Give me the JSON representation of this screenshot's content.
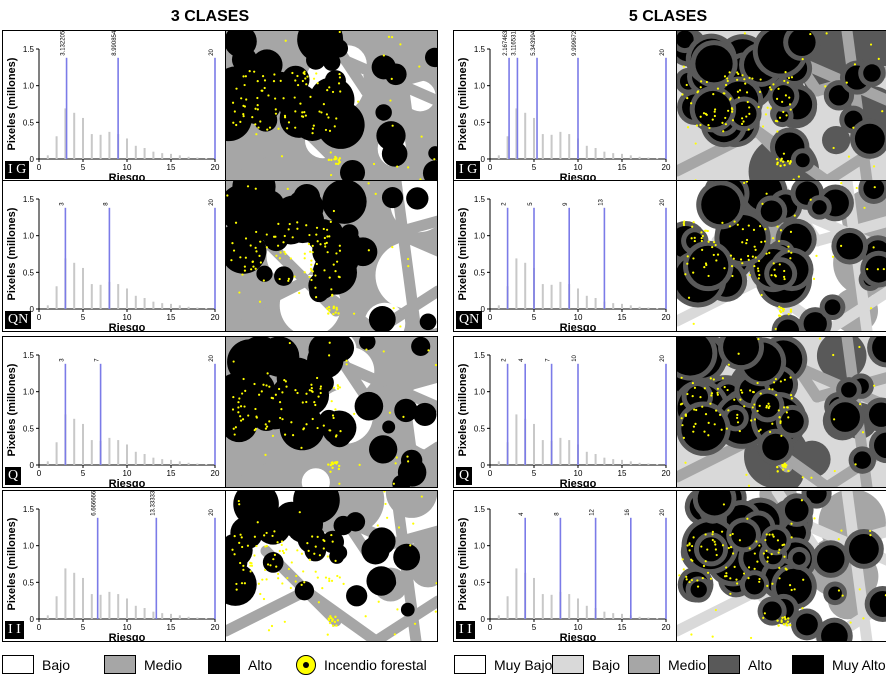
{
  "headers": {
    "left": "3 CLASES",
    "right": "5 CLASES"
  },
  "axis": {
    "ylabel": "Pixeles (millones)",
    "xlabel": "Riesgo"
  },
  "colors": {
    "hist_bar": "#c8c8c8",
    "threshold": "#7b7be8",
    "bajo": "#ffffff",
    "medio": "#a6a6a6",
    "alto": "#000000",
    "muy_bajo": "#ffffff",
    "bajo5": "#d9d9d9",
    "medio5": "#a6a6a6",
    "alto5": "#595959",
    "muy_alto": "#000000",
    "fire": "#ffff00"
  },
  "chart_data": [
    {
      "type": "bar",
      "method": "IG",
      "classes": 3,
      "x": [
        1,
        2,
        3,
        4,
        5,
        6,
        7,
        8,
        9,
        10,
        11,
        12,
        13,
        14,
        15,
        16,
        17,
        18,
        19,
        20
      ],
      "y": [
        0.05,
        0.31,
        0.69,
        0.63,
        0.56,
        0.34,
        0.33,
        0.37,
        0.34,
        0.28,
        0.18,
        0.15,
        0.1,
        0.08,
        0.07,
        0.05,
        0.03,
        0.02,
        0.01,
        0.0
      ],
      "thresholds": [
        3.13220592,
        8.99085493,
        20
      ],
      "threshold_labels": [
        "3.13220592",
        "8.99085493",
        "20"
      ],
      "ylim": [
        0,
        1.5
      ],
      "xlim": [
        0,
        20
      ],
      "yticks": [
        0,
        0.5,
        1.0,
        1.5
      ],
      "xticks": [
        0,
        5,
        10,
        15,
        20
      ]
    },
    {
      "type": "bar",
      "method": "QN",
      "classes": 3,
      "x": [
        1,
        2,
        3,
        4,
        5,
        6,
        7,
        8,
        9,
        10,
        11,
        12,
        13,
        14,
        15,
        16,
        17,
        18,
        19,
        20
      ],
      "y": [
        0.05,
        0.31,
        0.69,
        0.63,
        0.56,
        0.34,
        0.33,
        0.37,
        0.34,
        0.28,
        0.18,
        0.15,
        0.1,
        0.08,
        0.07,
        0.05,
        0.03,
        0.02,
        0.01,
        0.0
      ],
      "thresholds": [
        3,
        8,
        20
      ],
      "threshold_labels": [
        "3",
        "8",
        "20"
      ],
      "ylim": [
        0,
        1.5
      ],
      "xlim": [
        0,
        20
      ],
      "yticks": [
        0,
        0.5,
        1.0,
        1.5
      ],
      "xticks": [
        0,
        5,
        10,
        15,
        20
      ]
    },
    {
      "type": "bar",
      "method": "Q",
      "classes": 3,
      "x": [
        1,
        2,
        3,
        4,
        5,
        6,
        7,
        8,
        9,
        10,
        11,
        12,
        13,
        14,
        15,
        16,
        17,
        18,
        19,
        20
      ],
      "y": [
        0.05,
        0.31,
        0.69,
        0.63,
        0.56,
        0.34,
        0.33,
        0.37,
        0.34,
        0.28,
        0.18,
        0.15,
        0.1,
        0.08,
        0.07,
        0.05,
        0.03,
        0.02,
        0.01,
        0.0
      ],
      "thresholds": [
        3,
        7,
        20
      ],
      "threshold_labels": [
        "3",
        "7",
        "20"
      ],
      "ylim": [
        0,
        1.5
      ],
      "xlim": [
        0,
        20
      ],
      "yticks": [
        0,
        0.5,
        1.0,
        1.5
      ],
      "xticks": [
        0,
        5,
        10,
        15,
        20
      ]
    },
    {
      "type": "bar",
      "method": "II",
      "classes": 3,
      "x": [
        1,
        2,
        3,
        4,
        5,
        6,
        7,
        8,
        9,
        10,
        11,
        12,
        13,
        14,
        15,
        16,
        17,
        18,
        19,
        20
      ],
      "y": [
        0.05,
        0.31,
        0.69,
        0.63,
        0.56,
        0.34,
        0.33,
        0.37,
        0.34,
        0.28,
        0.18,
        0.15,
        0.1,
        0.08,
        0.07,
        0.05,
        0.03,
        0.02,
        0.01,
        0.0
      ],
      "thresholds": [
        6.666666667,
        13.33333333,
        20
      ],
      "threshold_labels": [
        "6.666666667",
        "13.33333333",
        "20"
      ],
      "ylim": [
        0,
        1.5
      ],
      "xlim": [
        0,
        20
      ],
      "yticks": [
        0,
        0.5,
        1.0,
        1.5
      ],
      "xticks": [
        0,
        5,
        10,
        15,
        20
      ]
    },
    {
      "type": "bar",
      "method": "IG",
      "classes": 5,
      "x": [
        1,
        2,
        3,
        4,
        5,
        6,
        7,
        8,
        9,
        10,
        11,
        12,
        13,
        14,
        15,
        16,
        17,
        18,
        19,
        20
      ],
      "y": [
        0.05,
        0.31,
        0.69,
        0.63,
        0.56,
        0.34,
        0.33,
        0.37,
        0.34,
        0.28,
        0.18,
        0.15,
        0.1,
        0.08,
        0.07,
        0.05,
        0.03,
        0.02,
        0.01,
        0.0
      ],
      "thresholds": [
        2.1674631,
        3.11653111,
        5.3439943,
        9.9996729,
        20
      ],
      "threshold_labels": [
        "2.1674631",
        "3.11653111",
        "5.3439943",
        "9.9996729",
        "20"
      ],
      "ylim": [
        0,
        1.5
      ],
      "xlim": [
        0,
        20
      ],
      "yticks": [
        0,
        0.5,
        1.0,
        1.5
      ],
      "xticks": [
        0,
        5,
        10,
        15,
        20
      ]
    },
    {
      "type": "bar",
      "method": "QN",
      "classes": 5,
      "x": [
        1,
        2,
        3,
        4,
        5,
        6,
        7,
        8,
        9,
        10,
        11,
        12,
        13,
        14,
        15,
        16,
        17,
        18,
        19,
        20
      ],
      "y": [
        0.05,
        0.31,
        0.69,
        0.63,
        0.56,
        0.34,
        0.33,
        0.37,
        0.34,
        0.28,
        0.18,
        0.15,
        0.1,
        0.08,
        0.07,
        0.05,
        0.03,
        0.02,
        0.01,
        0.0
      ],
      "thresholds": [
        2,
        5,
        9,
        13,
        20
      ],
      "threshold_labels": [
        "2",
        "5",
        "9",
        "13",
        "20"
      ],
      "ylim": [
        0,
        1.5
      ],
      "xlim": [
        0,
        20
      ],
      "yticks": [
        0,
        0.5,
        1.0,
        1.5
      ],
      "xticks": [
        0,
        5,
        10,
        15,
        20
      ]
    },
    {
      "type": "bar",
      "method": "Q",
      "classes": 5,
      "x": [
        1,
        2,
        3,
        4,
        5,
        6,
        7,
        8,
        9,
        10,
        11,
        12,
        13,
        14,
        15,
        16,
        17,
        18,
        19,
        20
      ],
      "y": [
        0.05,
        0.31,
        0.69,
        0.63,
        0.56,
        0.34,
        0.33,
        0.37,
        0.34,
        0.28,
        0.18,
        0.15,
        0.1,
        0.08,
        0.07,
        0.05,
        0.03,
        0.02,
        0.01,
        0.0
      ],
      "thresholds": [
        2,
        4,
        7,
        10,
        20
      ],
      "threshold_labels": [
        "2",
        "4",
        "7",
        "10",
        "20"
      ],
      "ylim": [
        0,
        1.5
      ],
      "xlim": [
        0,
        20
      ],
      "yticks": [
        0,
        0.5,
        1.0,
        1.5
      ],
      "xticks": [
        0,
        5,
        10,
        15,
        20
      ]
    },
    {
      "type": "bar",
      "method": "II",
      "classes": 5,
      "x": [
        1,
        2,
        3,
        4,
        5,
        6,
        7,
        8,
        9,
        10,
        11,
        12,
        13,
        14,
        15,
        16,
        17,
        18,
        19,
        20
      ],
      "y": [
        0.05,
        0.31,
        0.69,
        0.63,
        0.56,
        0.34,
        0.33,
        0.37,
        0.34,
        0.28,
        0.18,
        0.15,
        0.1,
        0.08,
        0.07,
        0.05,
        0.03,
        0.02,
        0.01,
        0.0
      ],
      "thresholds": [
        4,
        8,
        12,
        16,
        20
      ],
      "threshold_labels": [
        "4",
        "8",
        "12",
        "16",
        "20"
      ],
      "ylim": [
        0,
        1.5
      ],
      "xlim": [
        0,
        20
      ],
      "yticks": [
        0,
        0.5,
        1.0,
        1.5
      ],
      "xticks": [
        0,
        5,
        10,
        15,
        20
      ]
    }
  ],
  "badges": [
    "I G",
    "QN",
    "Q",
    "I I",
    "I G",
    "QN",
    "Q",
    "I I"
  ],
  "legend3": [
    {
      "label": "Bajo",
      "color": "#ffffff"
    },
    {
      "label": "Medio",
      "color": "#a6a6a6"
    },
    {
      "label": "Alto",
      "color": "#000000"
    },
    {
      "label": "Incendio forestal",
      "color": "#ffff00"
    }
  ],
  "legend5": [
    {
      "label": "Muy Bajo",
      "color": "#ffffff"
    },
    {
      "label": "Bajo",
      "color": "#d9d9d9"
    },
    {
      "label": "Medio",
      "color": "#a6a6a6"
    },
    {
      "label": "Alto",
      "color": "#595959"
    },
    {
      "label": "Muy Alto",
      "color": "#000000"
    }
  ]
}
